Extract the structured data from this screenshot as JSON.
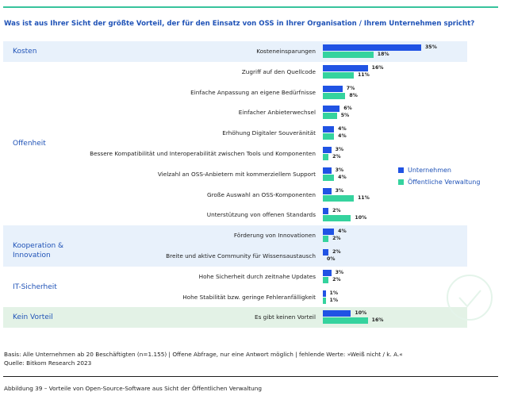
{
  "question": "Was ist aus Ihrer Sicht der größte Vorteil, der für den Einsatz von OSS in Ihrer Organisation / Ihrem Unternehmen spricht?",
  "colors": {
    "unternehmen": "#2053e4",
    "verwaltung": "#35d39e",
    "accent": "#2053b7",
    "rule": "#38c39c"
  },
  "chart_data": {
    "type": "bar",
    "orientation": "horizontal",
    "unit": "%",
    "xlim": [
      0,
      40
    ],
    "categories": [
      "Kosteneinsparungen",
      "Zugriff auf den Quellcode",
      "Einfache Anpassung an eigene Bedürfnisse",
      "Einfacher Anbieterwechsel",
      "Erhöhung Digitaler Souveränität",
      "Bessere Kompatibilität und Interoperabilität zwischen Tools und Komponenten",
      "Vielzahl an OSS-Anbietern mit kommerziellem Support",
      "Große Auswahl an OSS-Komponenten",
      "Unterstützung von offenen Standards",
      "Förderung von Innovationen",
      "Breite und aktive Community für Wissensaustausch",
      "Hohe Sicherheit durch zeitnahe Updates",
      "Hohe Stabilität bzw. geringe Fehleranfälligkeit",
      "Es gibt keinen Vorteil"
    ],
    "series": [
      {
        "name": "Unternehmen",
        "values": [
          35,
          16,
          7,
          6,
          4,
          3,
          3,
          3,
          2,
          4,
          2,
          3,
          1,
          10
        ]
      },
      {
        "name": "Öffentliche Verwaltung",
        "values": [
          18,
          11,
          8,
          5,
          4,
          2,
          4,
          11,
          10,
          2,
          0,
          2,
          1,
          16
        ]
      }
    ],
    "groups": [
      {
        "label": "Kosten",
        "start": 0,
        "end": 0,
        "style": "blue"
      },
      {
        "label": "Offenheit",
        "start": 1,
        "end": 8,
        "style": "none"
      },
      {
        "label": "Kooperation & Innovation",
        "start": 9,
        "end": 10,
        "style": "blue"
      },
      {
        "label": "IT-Sicherheit",
        "start": 11,
        "end": 12,
        "style": "none"
      },
      {
        "label": "Kein Vorteil",
        "start": 13,
        "end": 13,
        "style": "green"
      }
    ]
  },
  "footer": {
    "basis": "Basis: Alle Unternehmen ab 20 Beschäftigten (n=1.155) | Offene Abfrage, nur eine Antwort möglich | fehlende Werte: »Weiß nicht / k. A.«",
    "source": "Quelle: Bitkom Research 2023",
    "caption": "Abbildung 39 – Vorteile von Open-Source-Software aus Sicht der Öffentlichen Verwaltung"
  }
}
